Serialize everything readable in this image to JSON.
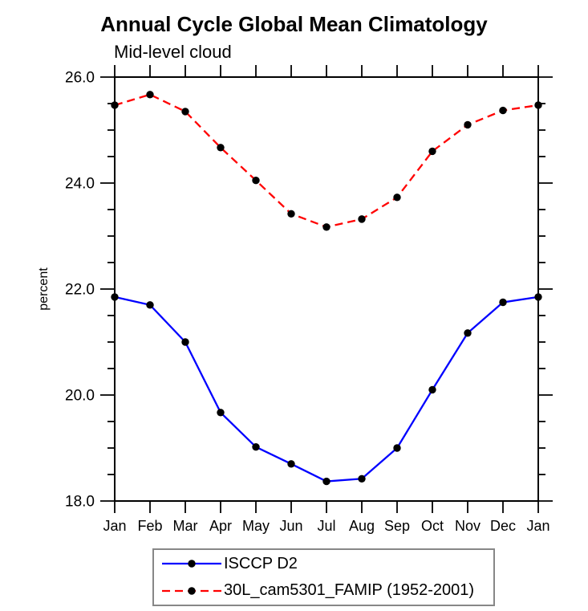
{
  "chart_data": {
    "type": "line",
    "title": "Annual Cycle Global Mean Climatology",
    "subtitle": "Mid-level cloud",
    "ylabel": "percent",
    "x_categories": [
      "Jan",
      "Feb",
      "Mar",
      "Apr",
      "May",
      "Jun",
      "Jul",
      "Aug",
      "Sep",
      "Oct",
      "Nov",
      "Dec",
      "Jan"
    ],
    "ylim": [
      18.0,
      26.0
    ],
    "ytick_major": [
      18.0,
      20.0,
      22.0,
      24.0,
      26.0
    ],
    "ytick_minor_step": 0.5,
    "ytick_label_format_decimals": 1,
    "grid": false,
    "legend_position": "bottom",
    "axis_color": "#000000",
    "marker_color": "#000000",
    "series": [
      {
        "name": "ISCCP D2",
        "color": "#0000ff",
        "line_style": "solid",
        "marker": "filled-circle",
        "values": [
          21.85,
          21.7,
          21.0,
          19.67,
          19.02,
          18.7,
          18.37,
          18.42,
          19.0,
          20.1,
          21.17,
          21.75,
          21.85
        ]
      },
      {
        "name": "30L_cam5301_FAMIP (1952-2001)",
        "color": "#ff0000",
        "line_style": "dashed",
        "marker": "filled-circle",
        "values": [
          25.47,
          25.67,
          25.35,
          24.67,
          24.05,
          23.42,
          23.17,
          23.32,
          23.73,
          24.6,
          25.1,
          25.37,
          25.47
        ]
      }
    ]
  }
}
